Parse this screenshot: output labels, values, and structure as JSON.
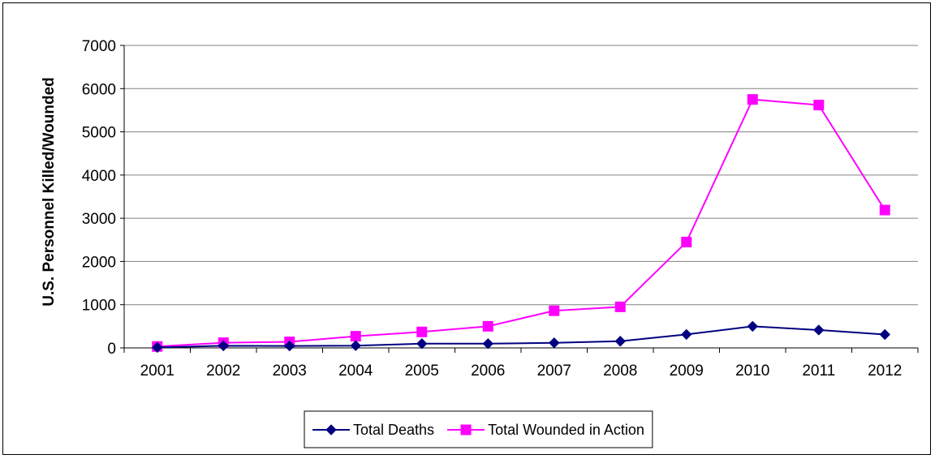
{
  "chart_data": {
    "type": "line",
    "title": "",
    "xlabel": "",
    "ylabel": "U.S. Personnel Killed/Wounded",
    "categories": [
      "2001",
      "2002",
      "2003",
      "2004",
      "2005",
      "2006",
      "2007",
      "2008",
      "2009",
      "2010",
      "2011",
      "2012"
    ],
    "ylim": [
      0,
      7000
    ],
    "yticks": [
      0,
      1000,
      2000,
      3000,
      4000,
      5000,
      6000,
      7000
    ],
    "grid": true,
    "legend_position": "bottom",
    "series": [
      {
        "name": "Total Deaths",
        "color": "#000080",
        "marker": "diamond",
        "values": [
          12,
          49,
          45,
          52,
          98,
          98,
          117,
          155,
          311,
          499,
          414,
          310
        ]
      },
      {
        "name": "Total Wounded in Action",
        "color": "#FF00FF",
        "marker": "square",
        "values": [
          33,
          120,
          140,
          270,
          370,
          500,
          860,
          950,
          2450,
          5750,
          5620,
          3190
        ]
      }
    ]
  }
}
